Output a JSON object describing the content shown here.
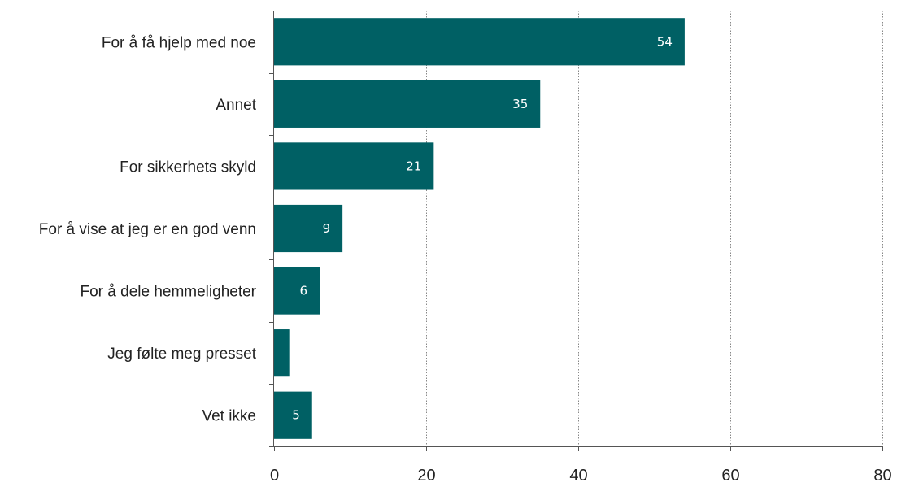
{
  "chart_data": {
    "type": "bar",
    "orientation": "horizontal",
    "title": "",
    "xlabel": "",
    "ylabel": "",
    "categories": [
      "For å få hjelp med noe",
      "Annet",
      "For sikkerhets skyld",
      "For å vise at jeg er en god venn",
      "For å dele hemmeligheter",
      "Jeg følte meg presset",
      "Vet ikke"
    ],
    "values": [
      54,
      35,
      21,
      9,
      6,
      2,
      5
    ],
    "data_labels": [
      "54",
      "35",
      "21",
      "9",
      "6",
      "",
      "5"
    ],
    "xlim": [
      0,
      80
    ],
    "x_ticks": [
      0,
      20,
      40,
      60,
      80
    ],
    "x_tick_labels": [
      "0",
      "20",
      "40",
      "60",
      "80"
    ],
    "grid": "vertical dotted",
    "legend": "none",
    "bar_color": "#006064",
    "label_color": "#ffffff"
  }
}
